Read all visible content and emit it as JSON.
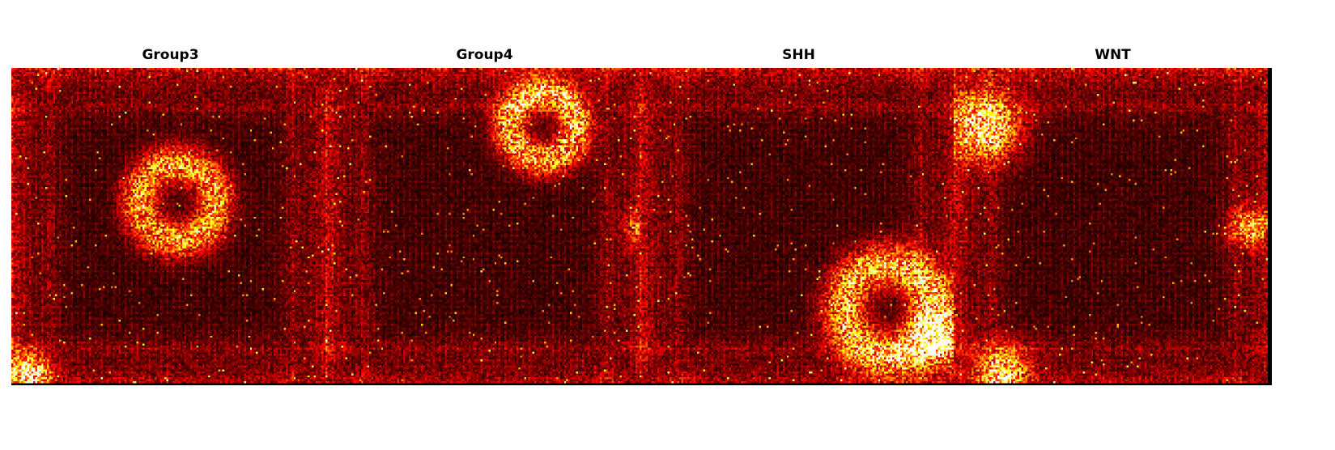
{
  "chart_data": [
    {
      "type": "heatmap",
      "title": "Group3",
      "colormap": "hot",
      "hotspots": [
        {
          "cx": 0.52,
          "cy": 0.42,
          "r": 0.17,
          "strength": 0.55,
          "ring": true
        },
        {
          "cx": 0.05,
          "cy": 0.96,
          "r": 0.06,
          "strength": 0.8,
          "ring": false
        }
      ]
    },
    {
      "type": "heatmap",
      "title": "Group4",
      "colormap": "hot",
      "hotspots": [
        {
          "cx": 0.68,
          "cy": 0.18,
          "r": 0.15,
          "strength": 0.6,
          "ring": true
        },
        {
          "cx": 0.98,
          "cy": 0.5,
          "r": 0.05,
          "strength": 0.3,
          "ring": false
        }
      ]
    },
    {
      "type": "heatmap",
      "title": "SHH",
      "colormap": "hot",
      "hotspots": [
        {
          "cx": 0.78,
          "cy": 0.76,
          "r": 0.2,
          "strength": 0.6,
          "ring": true
        },
        {
          "cx": 0.93,
          "cy": 0.85,
          "r": 0.08,
          "strength": 0.7,
          "ring": false
        }
      ]
    },
    {
      "type": "heatmap",
      "title": "WNT",
      "colormap": "hot",
      "hotspots": [
        {
          "cx": 0.1,
          "cy": 0.18,
          "r": 0.1,
          "strength": 0.8,
          "ring": false
        },
        {
          "cx": 0.93,
          "cy": 0.5,
          "r": 0.06,
          "strength": 0.55,
          "ring": false
        },
        {
          "cx": 0.15,
          "cy": 0.95,
          "r": 0.08,
          "strength": 0.65,
          "ring": false
        }
      ]
    }
  ]
}
